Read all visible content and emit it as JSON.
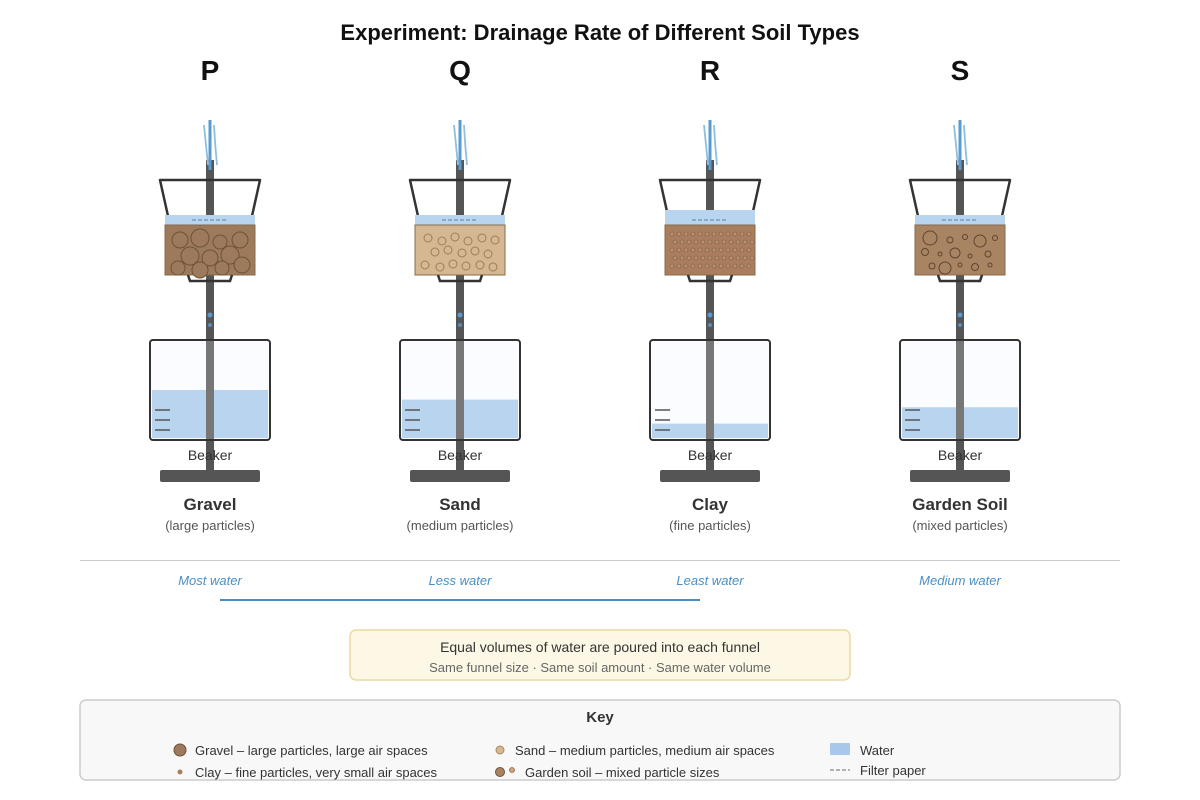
{
  "title": "Experiment: Drainage Rate of Different Soil Types",
  "colors": {
    "water": "#b8d4ee",
    "water_stream": "#8fbfe0",
    "stand": "#555555",
    "frame": "#333333",
    "gravel": "#9c7a5b",
    "sand": "#d5b893",
    "clay": "#a87e5f",
    "garden": "#a88462",
    "result_text": "#4a8fc4",
    "note_bg": "#fdf8e6",
    "note_border": "#ecd9a0",
    "key_bg": "#f8f8f8"
  },
  "setups": [
    {
      "letter": "P",
      "soil": "Gravel",
      "desc": "(large particles)",
      "beaker_label": "Beaker",
      "result": "Most water",
      "water_fill": 0.5,
      "particle_type": "gravel"
    },
    {
      "letter": "Q",
      "soil": "Sand",
      "desc": "(medium particles)",
      "beaker_label": "Beaker",
      "result": "Less water",
      "water_fill": 0.4,
      "particle_type": "sand"
    },
    {
      "letter": "R",
      "soil": "Clay",
      "desc": "(fine particles)",
      "beaker_label": "Beaker",
      "result": "Least water",
      "water_fill": 0.15,
      "particle_type": "clay"
    },
    {
      "letter": "S",
      "soil": "Garden Soil",
      "desc": "(mixed particles)",
      "beaker_label": "Beaker",
      "result": "Medium water",
      "water_fill": 0.32,
      "particle_type": "garden"
    }
  ],
  "note": {
    "main": "Equal volumes of water are poured into each funnel",
    "sub": "Same funnel size · Same soil amount · Same water volume"
  },
  "key": {
    "title": "Key",
    "items": [
      {
        "label": "Gravel – large particles, large air spaces",
        "icon": "gravel-particle-icon"
      },
      {
        "label": "Sand – medium particles, medium air spaces",
        "icon": "sand-particle-icon"
      },
      {
        "label": "Water",
        "icon": "water-swatch-icon"
      },
      {
        "label": "Clay – fine particles, very small air spaces",
        "icon": "clay-particle-icon"
      },
      {
        "label": "Garden soil – mixed particle sizes",
        "icon": "garden-particle-icon"
      },
      {
        "label": "Filter paper",
        "icon": "filter-paper-icon"
      }
    ]
  }
}
